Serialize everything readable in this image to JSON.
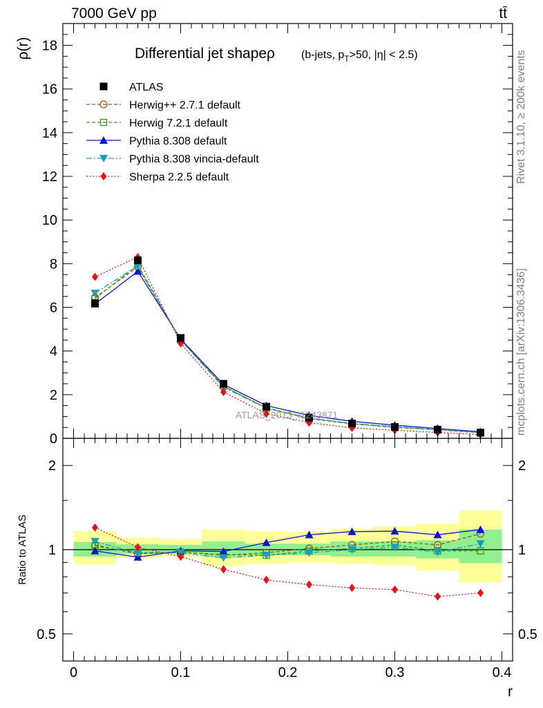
{
  "header": {
    "energy_label": "7000 GeV pp",
    "process_label": "tt̄"
  },
  "side_labels": {
    "rivet": "Rivet 3.1.10, ≥ 200k events",
    "mcplots": "mcplots.cern.ch [arXiv:1306.3436]"
  },
  "chart_data": [
    {
      "type": "line",
      "title": "Differential jet shape ρ (b-jets, pT>50, |η| < 2.5)",
      "title_main": "Differential jet shapeρ",
      "title_sub_a": "(b-jets, p",
      "title_sub_b": "T",
      "title_sub_c": ">50, |η| < 2.5)",
      "ylabel": "ρ(r)",
      "watermark": "ATLAS_2013_I1243871",
      "ylim": [
        0,
        19
      ],
      "xlim": [
        -0.01,
        0.41
      ],
      "yticks": [
        "0",
        "2",
        "4",
        "6",
        "8",
        "10",
        "12",
        "14",
        "16",
        "18"
      ],
      "legend_position": "top-left",
      "x": [
        0.02,
        0.06,
        0.1,
        0.14,
        0.18,
        0.22,
        0.26,
        0.3,
        0.34,
        0.38
      ],
      "series": [
        {
          "name": "ATLAS",
          "color": "#000000",
          "marker": "square",
          "line": "none",
          "values": [
            6.2,
            8.15,
            4.6,
            2.5,
            1.45,
            0.95,
            0.68,
            0.52,
            0.4,
            0.26
          ]
        },
        {
          "name": "Herwig++ 2.7.1 default",
          "color": "#9a5a14",
          "marker": "open-circle",
          "line": "dash",
          "values": [
            6.45,
            7.85,
            4.5,
            2.38,
            1.4,
            0.93,
            0.68,
            0.52,
            0.4,
            0.27
          ]
        },
        {
          "name": "Herwig 7.2.1 default",
          "color": "#3c9a10",
          "marker": "open-square",
          "line": "dash",
          "values": [
            6.4,
            7.95,
            4.52,
            2.4,
            1.38,
            0.9,
            0.66,
            0.5,
            0.39,
            0.25
          ]
        },
        {
          "name": "Pythia 8.308 default",
          "color": "#0a14d2",
          "marker": "triangle-up",
          "line": "solid",
          "values": [
            6.15,
            7.65,
            4.55,
            2.47,
            1.5,
            1.05,
            0.78,
            0.6,
            0.45,
            0.3
          ]
        },
        {
          "name": "Pythia 8.308 vincia-default",
          "color": "#15a0c0",
          "marker": "triangle-down",
          "line": "dashdot",
          "values": [
            6.65,
            7.9,
            4.5,
            2.33,
            1.38,
            0.92,
            0.68,
            0.53,
            0.4,
            0.27
          ]
        },
        {
          "name": "Sherpa 2.2.5 default",
          "color": "#ee1010",
          "marker": "diamond",
          "line": "dot",
          "values": [
            7.4,
            8.3,
            4.35,
            2.12,
            1.13,
            0.72,
            0.48,
            0.37,
            0.27,
            0.17
          ]
        }
      ]
    },
    {
      "type": "line",
      "ylabel": "Ratio to ATLAS",
      "xlabel": "r",
      "y_scale": "log",
      "ylim": [
        0.4,
        2.5
      ],
      "yticks": [
        "0.5",
        "1",
        "2"
      ],
      "xticks": [
        "0",
        "0.1",
        "0.2",
        "0.3",
        "0.4"
      ],
      "x": [
        0.02,
        0.06,
        0.1,
        0.14,
        0.18,
        0.22,
        0.26,
        0.3,
        0.34,
        0.38
      ],
      "bin_edges": [
        0.0,
        0.04,
        0.08,
        0.12,
        0.16,
        0.2,
        0.24,
        0.28,
        0.32,
        0.36,
        0.4
      ],
      "uncertainty_bands": [
        {
          "name": "stat",
          "color": "#90f090",
          "lower": [
            0.945,
            0.965,
            0.97,
            0.945,
            0.955,
            0.955,
            0.945,
            0.945,
            0.93,
            0.895
          ],
          "upper": [
            1.065,
            1.045,
            1.04,
            1.07,
            1.05,
            1.05,
            1.07,
            1.07,
            1.08,
            1.18
          ]
        },
        {
          "name": "syst",
          "color": "#ffff9a",
          "lower": [
            0.885,
            0.935,
            0.945,
            0.875,
            0.89,
            0.9,
            0.89,
            0.88,
            0.84,
            0.765
          ]
        },
        {
          "name": "syst_upper",
          "color": "#ffff9a",
          "upper": [
            1.165,
            1.105,
            1.09,
            1.18,
            1.165,
            1.16,
            1.19,
            1.21,
            1.24,
            1.38
          ]
        }
      ],
      "series": [
        {
          "name": "Herwig++ 2.7.1 default",
          "color": "#9a5a14",
          "marker": "open-circle",
          "line": "dash",
          "values": [
            1.04,
            0.965,
            0.98,
            0.955,
            0.975,
            1.01,
            1.04,
            1.07,
            1.04,
            1.14
          ]
        },
        {
          "name": "Herwig 7.2.1 default",
          "color": "#3c9a10",
          "marker": "open-square",
          "line": "dash",
          "values": [
            1.03,
            0.975,
            0.98,
            0.96,
            0.955,
            0.99,
            1.01,
            1.04,
            0.99,
            0.99
          ]
        },
        {
          "name": "Pythia 8.308 default",
          "color": "#0a14d2",
          "marker": "triangle-up",
          "line": "solid",
          "values": [
            0.99,
            0.94,
            0.99,
            0.985,
            1.06,
            1.13,
            1.16,
            1.165,
            1.13,
            1.18
          ]
        },
        {
          "name": "Pythia 8.308 vincia-default",
          "color": "#15a0c0",
          "marker": "triangle-down",
          "line": "dashdot",
          "values": [
            1.07,
            0.97,
            0.975,
            0.935,
            0.955,
            0.975,
            1.0,
            1.02,
            0.98,
            1.05
          ]
        },
        {
          "name": "Sherpa 2.2.5 default",
          "color": "#ee1010",
          "marker": "diamond",
          "line": "dot",
          "values": [
            1.2,
            1.02,
            0.945,
            0.85,
            0.78,
            0.75,
            0.73,
            0.72,
            0.68,
            0.7
          ]
        }
      ]
    }
  ]
}
